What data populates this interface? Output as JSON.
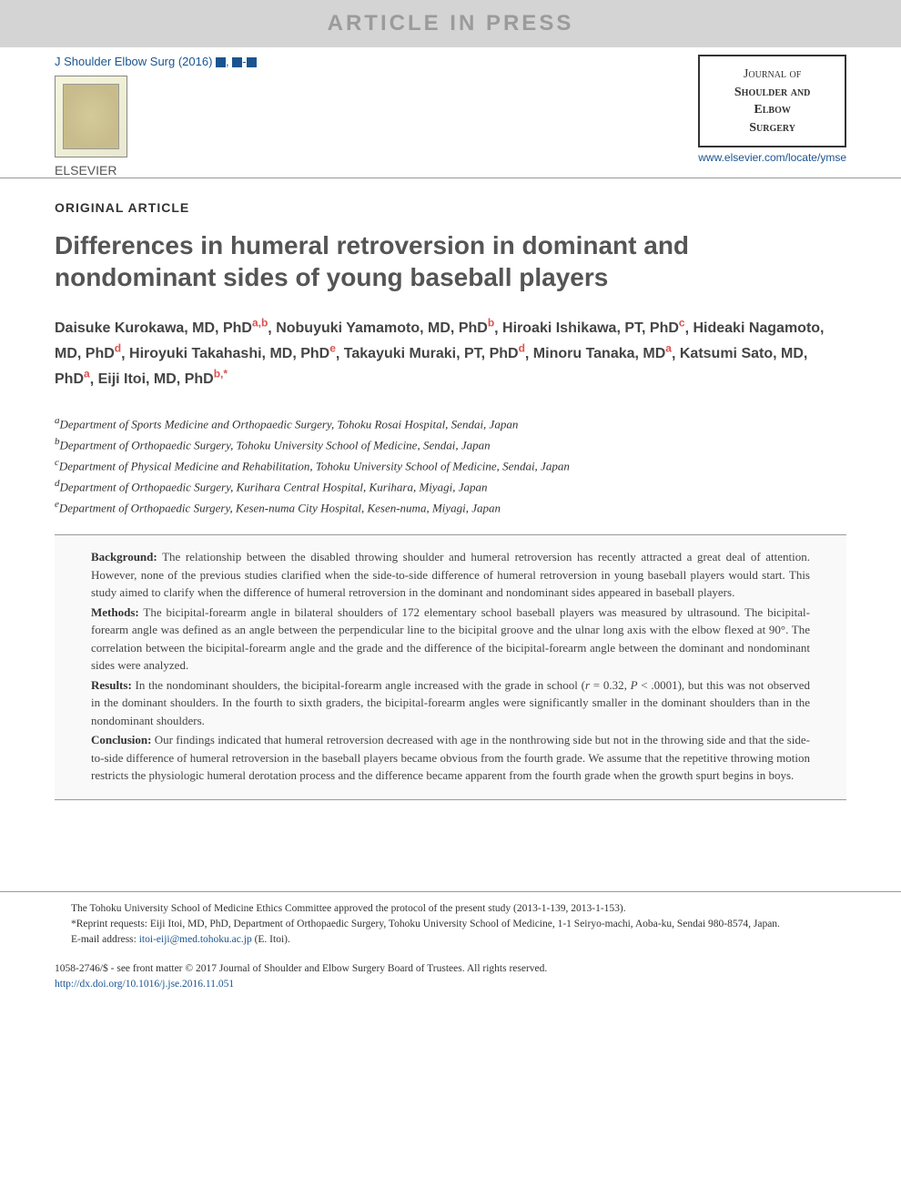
{
  "banner": "ARTICLE IN PRESS",
  "header": {
    "citation_prefix": "J Shoulder Elbow Surg (2016) ",
    "elsevier": "ELSEVIER",
    "journal_name_l1": "Journal of",
    "journal_name_l2": "Shoulder and",
    "journal_name_l3": "Elbow",
    "journal_name_l4": "Surgery",
    "journal_link": "www.elsevier.com/locate/ymse"
  },
  "article": {
    "type": "ORIGINAL ARTICLE",
    "title": "Differences in humeral retroversion in dominant and nondominant sides of young baseball players"
  },
  "authors": [
    {
      "name": "Daisuke Kurokawa, MD, PhD",
      "aff": "a,b"
    },
    {
      "name": "Nobuyuki Yamamoto, MD, PhD",
      "aff": "b"
    },
    {
      "name": "Hiroaki Ishikawa, PT, PhD",
      "aff": "c"
    },
    {
      "name": "Hideaki Nagamoto, MD, PhD",
      "aff": "d"
    },
    {
      "name": "Hiroyuki Takahashi, MD, PhD",
      "aff": "e"
    },
    {
      "name": "Takayuki Muraki, PT, PhD",
      "aff": "d"
    },
    {
      "name": "Minoru Tanaka, MD",
      "aff": "a"
    },
    {
      "name": "Katsumi Sato, MD, PhD",
      "aff": "a"
    },
    {
      "name": "Eiji Itoi, MD, PhD",
      "aff": "b,*"
    }
  ],
  "affiliations": [
    {
      "key": "a",
      "text": "Department of Sports Medicine and Orthopaedic Surgery, Tohoku Rosai Hospital, Sendai, Japan"
    },
    {
      "key": "b",
      "text": "Department of Orthopaedic Surgery, Tohoku University School of Medicine, Sendai, Japan"
    },
    {
      "key": "c",
      "text": "Department of Physical Medicine and Rehabilitation, Tohoku University School of Medicine, Sendai, Japan"
    },
    {
      "key": "d",
      "text": "Department of Orthopaedic Surgery, Kurihara Central Hospital, Kurihara, Miyagi, Japan"
    },
    {
      "key": "e",
      "text": "Department of Orthopaedic Surgery, Kesen-numa City Hospital, Kesen-numa, Miyagi, Japan"
    }
  ],
  "abstract": {
    "background_label": "Background:",
    "background": " The relationship between the disabled throwing shoulder and humeral retroversion has recently attracted a great deal of attention. However, none of the previous studies clarified when the side-to-side difference of humeral retroversion in young baseball players would start. This study aimed to clarify when the difference of humeral retroversion in the dominant and nondominant sides appeared in baseball players.",
    "methods_label": "Methods:",
    "methods": " The bicipital-forearm angle in bilateral shoulders of 172 elementary school baseball players was measured by ultrasound. The bicipital-forearm angle was defined as an angle between the perpendicular line to the bicipital groove and the ulnar long axis with the elbow flexed at 90°. The correlation between the bicipital-forearm angle and the grade and the difference of the bicipital-forearm angle between the dominant and nondominant sides were analyzed.",
    "results_label": "Results:",
    "results_pre": " In the nondominant shoulders, the bicipital-forearm angle increased with the grade in school (",
    "results_stats_r": "r",
    "results_stats_mid": " = 0.32, ",
    "results_stats_p": "P",
    "results_stats_end": " < .0001), but this was not observed in the dominant shoulders. In the fourth to sixth graders, the bicipital-forearm angles were significantly smaller in the dominant shoulders than in the nondominant shoulders.",
    "conclusion_label": "Conclusion:",
    "conclusion": " Our findings indicated that humeral retroversion decreased with age in the nonthrowing side but not in the throwing side and that the side-to-side difference of humeral retroversion in the baseball players became obvious from the fourth grade. We assume that the repetitive throwing motion restricts the physiologic humeral derotation process and the difference became apparent from the fourth grade when the growth spurt begins in boys."
  },
  "footer": {
    "ethics": "The Tohoku University School of Medicine Ethics Committee approved the protocol of the present study (2013-1-139, 2013-1-153).",
    "reprint_label": "*Reprint requests: ",
    "reprint": "Eiji Itoi, MD, PhD, Department of Orthopaedic Surgery, Tohoku University School of Medicine, 1-1 Seiryo-machi, Aoba-ku, Sendai 980-8574, Japan.",
    "email_label": "E-mail address: ",
    "email": "itoi-eiji@med.tohoku.ac.jp",
    "email_suffix": " (E. Itoi)."
  },
  "copyright": {
    "line1": "1058-2746/$ - see front matter © 2017 Journal of Shoulder and Elbow Surgery Board of Trustees. All rights reserved.",
    "doi": "http://dx.doi.org/10.1016/j.jse.2016.11.051"
  }
}
